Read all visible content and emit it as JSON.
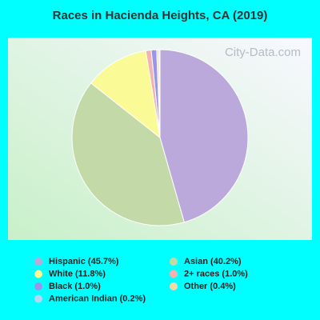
{
  "chart_data": {
    "type": "pie",
    "title": "Races in Hacienda Heights, CA (2019)",
    "watermark": "City-Data.com",
    "categories": [
      "Hispanic",
      "Asian",
      "White",
      "2+ races",
      "Black",
      "Other",
      "American Indian"
    ],
    "values": [
      45.7,
      40.2,
      11.8,
      1.0,
      1.0,
      0.4,
      0.2
    ],
    "value_labels": [
      "(45.7%)",
      "(40.2%)",
      "(11.8%)",
      "(1.0%)",
      "(1.0%)",
      "(0.4%)",
      "(0.2%)"
    ],
    "colors": [
      "#bca9db",
      "#c4d9a8",
      "#fafa96",
      "#f3b3b0",
      "#9b95e8",
      "#f4d8a8",
      "#b4d8f4"
    ]
  }
}
